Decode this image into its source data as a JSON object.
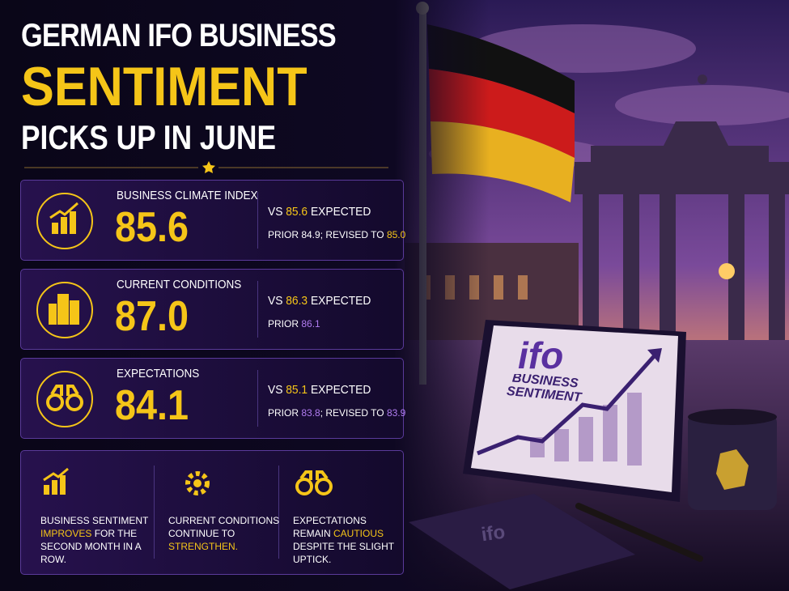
{
  "title": {
    "line1": "GERMAN IFO BUSINESS",
    "line2": "SENTIMENT",
    "line3": "PICKS UP IN JUNE"
  },
  "cards": [
    {
      "label": "BUSINESS CLIMATE INDEX",
      "value": "85.6",
      "comparison": [
        {
          "text": "VS "
        },
        {
          "text": "85.6",
          "color": "#f5c518"
        },
        {
          "text": " EXPECTED"
        }
      ],
      "prior": [
        {
          "text": "PRIOR 84.9; REVISED TO "
        },
        {
          "text": "85.0",
          "color": "#f5c518"
        }
      ]
    },
    {
      "label": "CURRENT CONDITIONS",
      "value": "87.0",
      "comparison": [
        {
          "text": "VS "
        },
        {
          "text": "86.3",
          "color": "#f5c518"
        },
        {
          "text": " EXPECTED"
        }
      ],
      "prior": [
        {
          "text": "PRIOR "
        },
        {
          "text": "86.1",
          "color": "#b07cf0"
        }
      ]
    },
    {
      "label": "EXPECTATIONS",
      "value": "84.1",
      "comparison": [
        {
          "text": "VS "
        },
        {
          "text": "85.1",
          "color": "#f5c518"
        },
        {
          "text": " EXPECTED"
        }
      ],
      "prior": [
        {
          "text": "PRIOR "
        },
        {
          "text": "83.8",
          "color": "#b07cf0"
        },
        {
          "text": "; REVISED TO "
        },
        {
          "text": "83.9",
          "color": "#b07cf0"
        }
      ]
    }
  ],
  "notes": [
    {
      "parts": [
        {
          "text": "BUSINESS SENTIMENT "
        },
        {
          "text": "IMPROVES",
          "color": "#f5c518"
        },
        {
          "text": " FOR THE SECOND MONTH IN A ROW."
        }
      ]
    },
    {
      "parts": [
        {
          "text": "CURRENT CONDITIONS CONTINUE TO "
        },
        {
          "text": "STRENGTHEN.",
          "color": "#f5c518"
        }
      ]
    },
    {
      "parts": [
        {
          "text": "EXPECTATIONS REMAIN "
        },
        {
          "text": "CAUTIOUS",
          "color": "#f5c518"
        },
        {
          "text": " DESPITE THE SLIGHT UPTICK."
        }
      ]
    }
  ],
  "scene": {
    "sign_logo": "ifo",
    "sign_text": "BUSINESS SENTIMENT",
    "notebook_logo": "ifo"
  }
}
